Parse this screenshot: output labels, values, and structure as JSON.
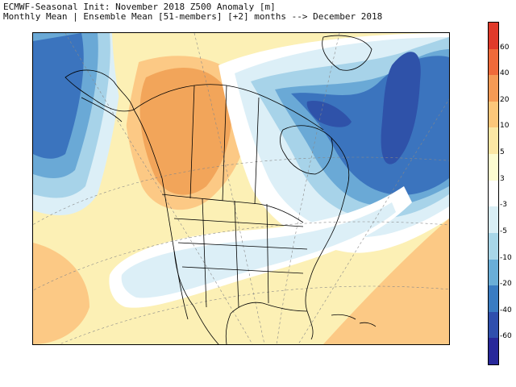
{
  "title_line1": "ECMWF-Seasonal Init: November 2018 Z500 Anomaly [m]",
  "title_line2": "Monthly Mean | Ensemble Mean [51-members] [+2] months --> December 2018",
  "colorbar": {
    "labels": [
      "60",
      "40",
      "20",
      "10",
      "5",
      "3",
      "-3",
      "-5",
      "-10",
      "-20",
      "-40",
      "-60"
    ],
    "colors": [
      "#e03a2a",
      "#ef6a3a",
      "#f59a55",
      "#fcc77a",
      "#fbe7a4",
      "#fcfcd0",
      "#ffffff",
      "#d9eef5",
      "#a8d6e8",
      "#6aaed7",
      "#3a7cc2",
      "#2f4fad",
      "#28289a"
    ]
  },
  "map": {
    "colors": {
      "land_line": "#000000",
      "ocean_bg": "#fdfdd8",
      "orange_strong": "#f2a55a",
      "orange_light": "#fcc985",
      "yellow_light": "#fcf0b5",
      "white": "#ffffff",
      "blue_pale": "#dceff7",
      "blue_light": "#a7d3e9",
      "blue_mid": "#6aa9d6",
      "blue_strong": "#3b74be",
      "blue_dark": "#2f52a9"
    }
  }
}
